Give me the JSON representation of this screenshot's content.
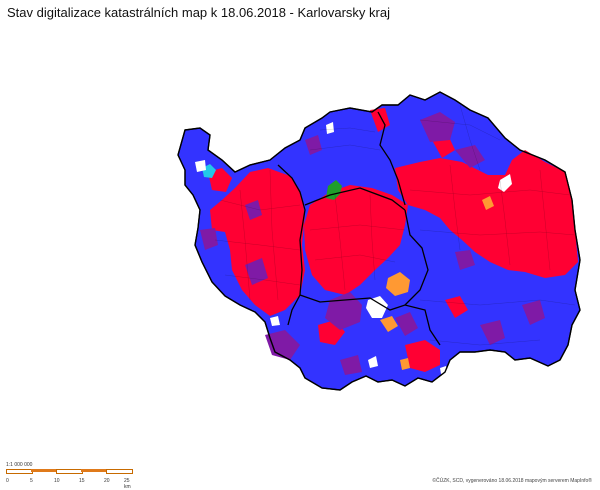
{
  "title": "Stav digitalizace katastrálních map k 18.06.2018 - Karlovarsky kraj",
  "colors": {
    "red": "#ff0033",
    "blue": "#3333ff",
    "purple": "#7f1aa6",
    "orange": "#ff9933",
    "green": "#1f9e2a",
    "cyan": "#22c8e8",
    "white": "#ffffff",
    "border": "#000000"
  },
  "scalebar": {
    "unit_text": "1:1 000 000",
    "ticks": [
      "0",
      "5",
      "10",
      "15",
      "20",
      "25 km"
    ]
  },
  "credit": "©ČÚZK, SCD, vygenerováno 18.06.2018 mapovým serverem MapInfo®"
}
